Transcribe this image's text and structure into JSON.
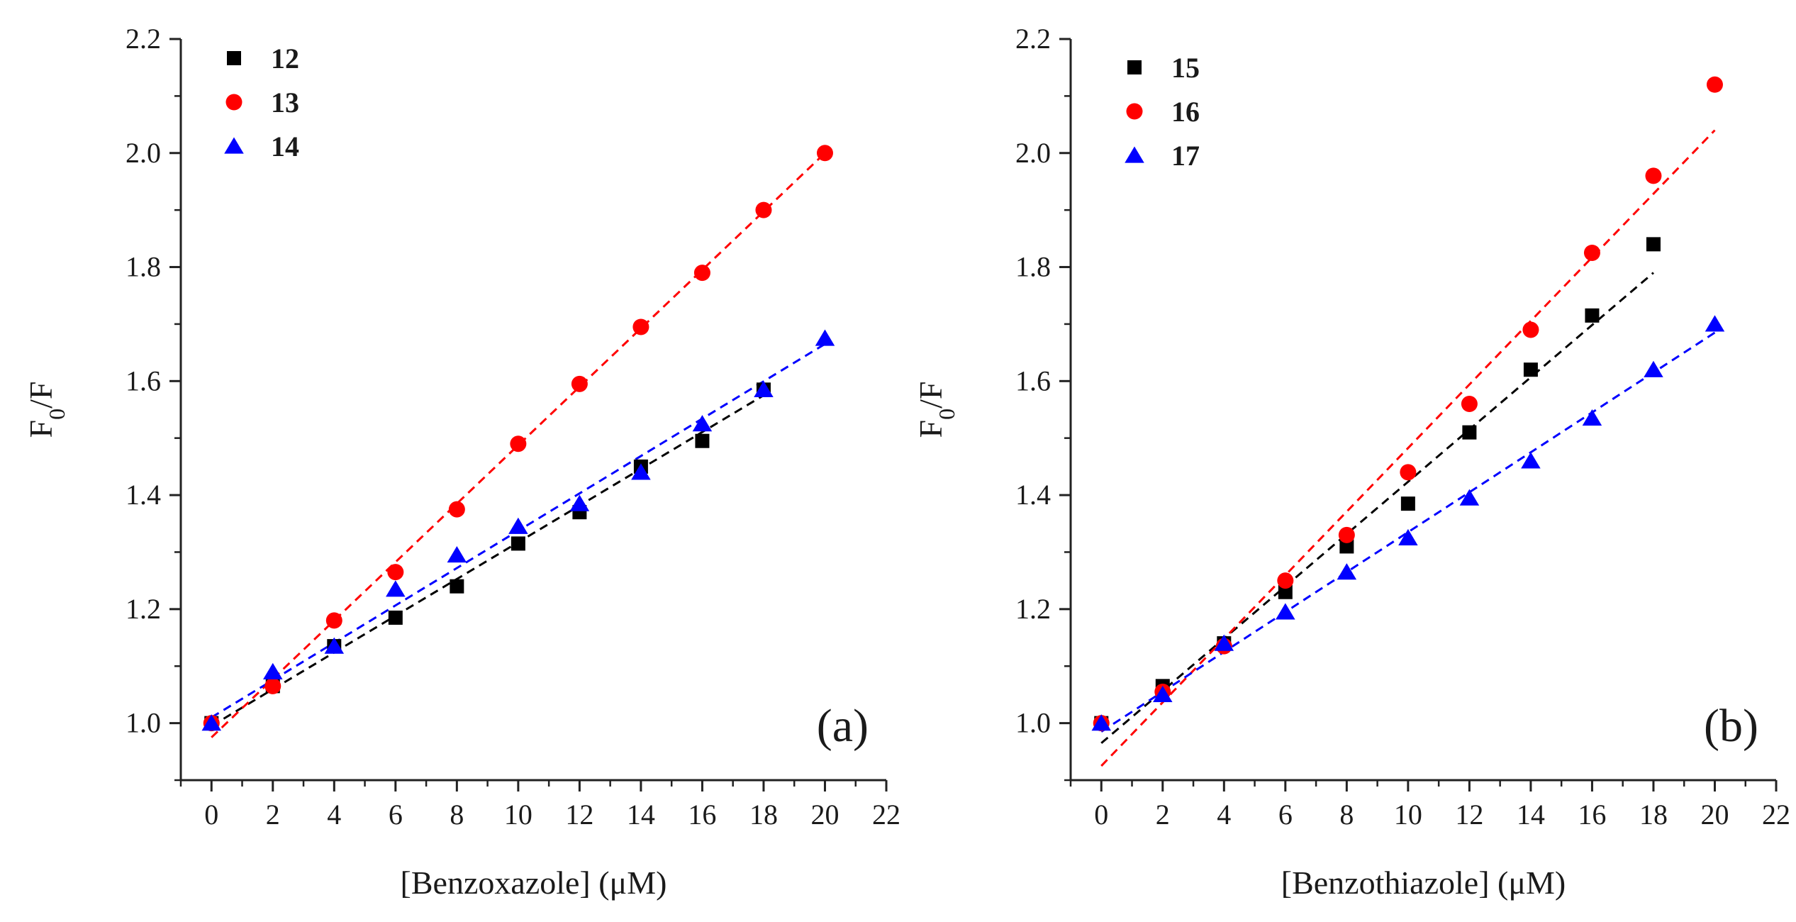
{
  "chart_data": [
    {
      "type": "scatter",
      "panel_label": "(a)",
      "xlabel": "[Benzoxazole] (μM)",
      "ylabel": "F0/F",
      "ylabel_parts": {
        "base": "F",
        "sub": "0",
        "rest": "/F"
      },
      "xlim": [
        -1,
        22
      ],
      "ylim": [
        0.9,
        2.2
      ],
      "x_ticks": [
        "0",
        "2",
        "4",
        "6",
        "8",
        "10",
        "12",
        "14",
        "16",
        "18",
        "20",
        "22"
      ],
      "y_ticks": [
        "1.0",
        "1.2",
        "1.4",
        "1.6",
        "1.8",
        "2.0",
        "2.2"
      ],
      "legend_position": "top-left",
      "series": [
        {
          "name": "12",
          "marker": "square",
          "color": "#000000",
          "x": [
            0,
            2,
            4,
            6,
            8,
            10,
            12,
            14,
            16,
            18
          ],
          "y": [
            1.0,
            1.065,
            1.135,
            1.185,
            1.24,
            1.315,
            1.37,
            1.45,
            1.495,
            1.585
          ],
          "fit": {
            "x0": 0,
            "y0": 0.995,
            "x1": 18,
            "y1": 1.575
          }
        },
        {
          "name": "13",
          "marker": "circle",
          "color": "#ff0000",
          "x": [
            0,
            2,
            4,
            6,
            8,
            10,
            12,
            14,
            16,
            18,
            20
          ],
          "y": [
            1.0,
            1.065,
            1.18,
            1.265,
            1.375,
            1.49,
            1.595,
            1.695,
            1.79,
            1.9,
            2.0
          ],
          "fit": {
            "x0": 0,
            "y0": 0.975,
            "x1": 20,
            "y1": 2.0
          }
        },
        {
          "name": "14",
          "marker": "triangle",
          "color": "#0000ff",
          "x": [
            0,
            2,
            4,
            6,
            8,
            10,
            12,
            14,
            16,
            18,
            20
          ],
          "y": [
            1.0,
            1.09,
            1.135,
            1.235,
            1.295,
            1.345,
            1.385,
            1.44,
            1.525,
            1.585,
            1.675
          ],
          "fit": {
            "x0": 0,
            "y0": 1.01,
            "x1": 20,
            "y1": 1.665
          }
        }
      ]
    },
    {
      "type": "scatter",
      "panel_label": "(b)",
      "xlabel": "[Benzothiazole] (μM)",
      "ylabel": "F0/F",
      "ylabel_parts": {
        "base": "F",
        "sub": "0",
        "rest": "/F"
      },
      "xlim": [
        -1,
        22
      ],
      "ylim": [
        0.9,
        2.2
      ],
      "x_ticks": [
        "0",
        "2",
        "4",
        "6",
        "8",
        "10",
        "12",
        "14",
        "16",
        "18",
        "20",
        "22"
      ],
      "y_ticks": [
        "1.0",
        "1.2",
        "1.4",
        "1.6",
        "1.8",
        "2.0",
        "2.2"
      ],
      "legend_position": "top-left",
      "series": [
        {
          "name": "15",
          "marker": "square",
          "color": "#000000",
          "x": [
            0,
            2,
            4,
            6,
            8,
            10,
            12,
            14,
            16,
            18
          ],
          "y": [
            1.0,
            1.065,
            1.14,
            1.23,
            1.31,
            1.385,
            1.51,
            1.62,
            1.715,
            1.84
          ],
          "fit": {
            "x0": 0,
            "y0": 0.965,
            "x1": 18,
            "y1": 1.79
          }
        },
        {
          "name": "16",
          "marker": "circle",
          "color": "#ff0000",
          "x": [
            0,
            2,
            4,
            6,
            8,
            10,
            12,
            14,
            16,
            18,
            20
          ],
          "y": [
            1.0,
            1.055,
            1.135,
            1.25,
            1.33,
            1.44,
            1.56,
            1.69,
            1.825,
            1.96,
            2.12
          ],
          "fit": {
            "x0": 0,
            "y0": 0.925,
            "x1": 20,
            "y1": 2.04
          }
        },
        {
          "name": "17",
          "marker": "triangle",
          "color": "#0000ff",
          "x": [
            0,
            2,
            4,
            6,
            8,
            10,
            12,
            14,
            16,
            18,
            20
          ],
          "y": [
            1.0,
            1.05,
            1.14,
            1.195,
            1.265,
            1.325,
            1.395,
            1.46,
            1.535,
            1.62,
            1.7
          ],
          "fit": {
            "x0": 0,
            "y0": 0.985,
            "x1": 20,
            "y1": 1.685
          }
        }
      ]
    }
  ]
}
